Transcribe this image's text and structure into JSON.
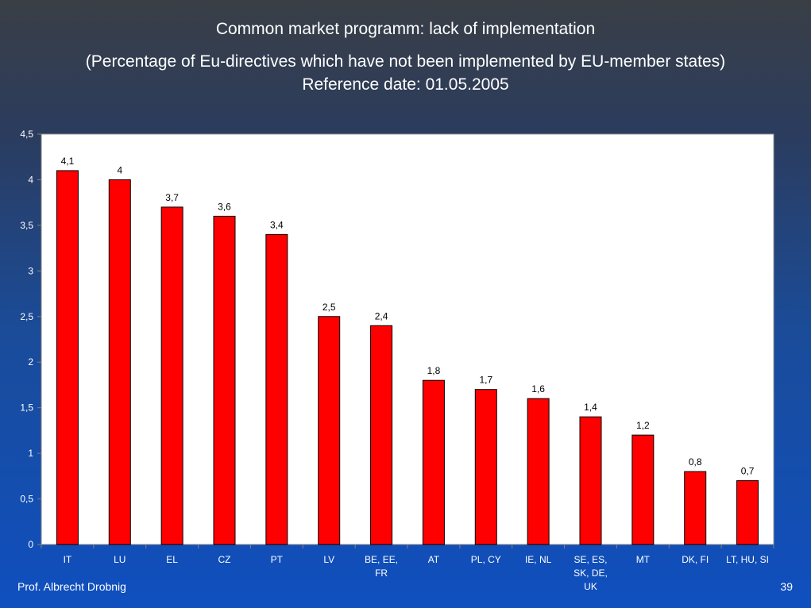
{
  "slide": {
    "title": "Common market programm: lack of implementation",
    "subtitle_line1": "(Percentage of Eu-directives which have not been implemented by EU-member states)",
    "subtitle_line2": "Reference date: 01.05.2005",
    "author": "Prof. Albrecht Drobnig",
    "page_number": "39"
  },
  "chart_data": {
    "type": "bar",
    "categories": [
      [
        "IT"
      ],
      [
        "LU"
      ],
      [
        "EL"
      ],
      [
        "CZ"
      ],
      [
        "PT"
      ],
      [
        "LV"
      ],
      [
        "BE, EE,",
        "FR"
      ],
      [
        "AT"
      ],
      [
        "PL, CY"
      ],
      [
        "IE, NL"
      ],
      [
        "SE, ES,",
        "SK, DE,",
        "UK"
      ],
      [
        "MT"
      ],
      [
        "DK, FI"
      ],
      [
        "LT, HU, SI"
      ]
    ],
    "values": [
      4.1,
      4,
      3.7,
      3.6,
      3.4,
      2.5,
      2.4,
      1.8,
      1.7,
      1.6,
      1.4,
      1.2,
      0.8,
      0.7
    ],
    "value_labels": [
      "4,1",
      "4",
      "3,7",
      "3,6",
      "3,4",
      "2,5",
      "2,4",
      "1,8",
      "1,7",
      "1,6",
      "1,4",
      "1,2",
      "0,8",
      "0,7"
    ],
    "yticks": [
      0,
      0.5,
      1,
      1.5,
      2,
      2.5,
      3,
      3.5,
      4,
      4.5
    ],
    "ytick_labels": [
      "0",
      "0,5",
      "1",
      "1,5",
      "2",
      "2,5",
      "3",
      "3,5",
      "4",
      "4,5"
    ],
    "ylim": [
      0,
      4.5
    ],
    "grid": false,
    "legend": "none",
    "colors": {
      "bar": "#ff0000",
      "bar_outline": "#000000",
      "plot_background": "#ffffff",
      "plot_border": "#9a9a9a",
      "axis_text": "#ffffff",
      "value_label": "#000000"
    }
  }
}
